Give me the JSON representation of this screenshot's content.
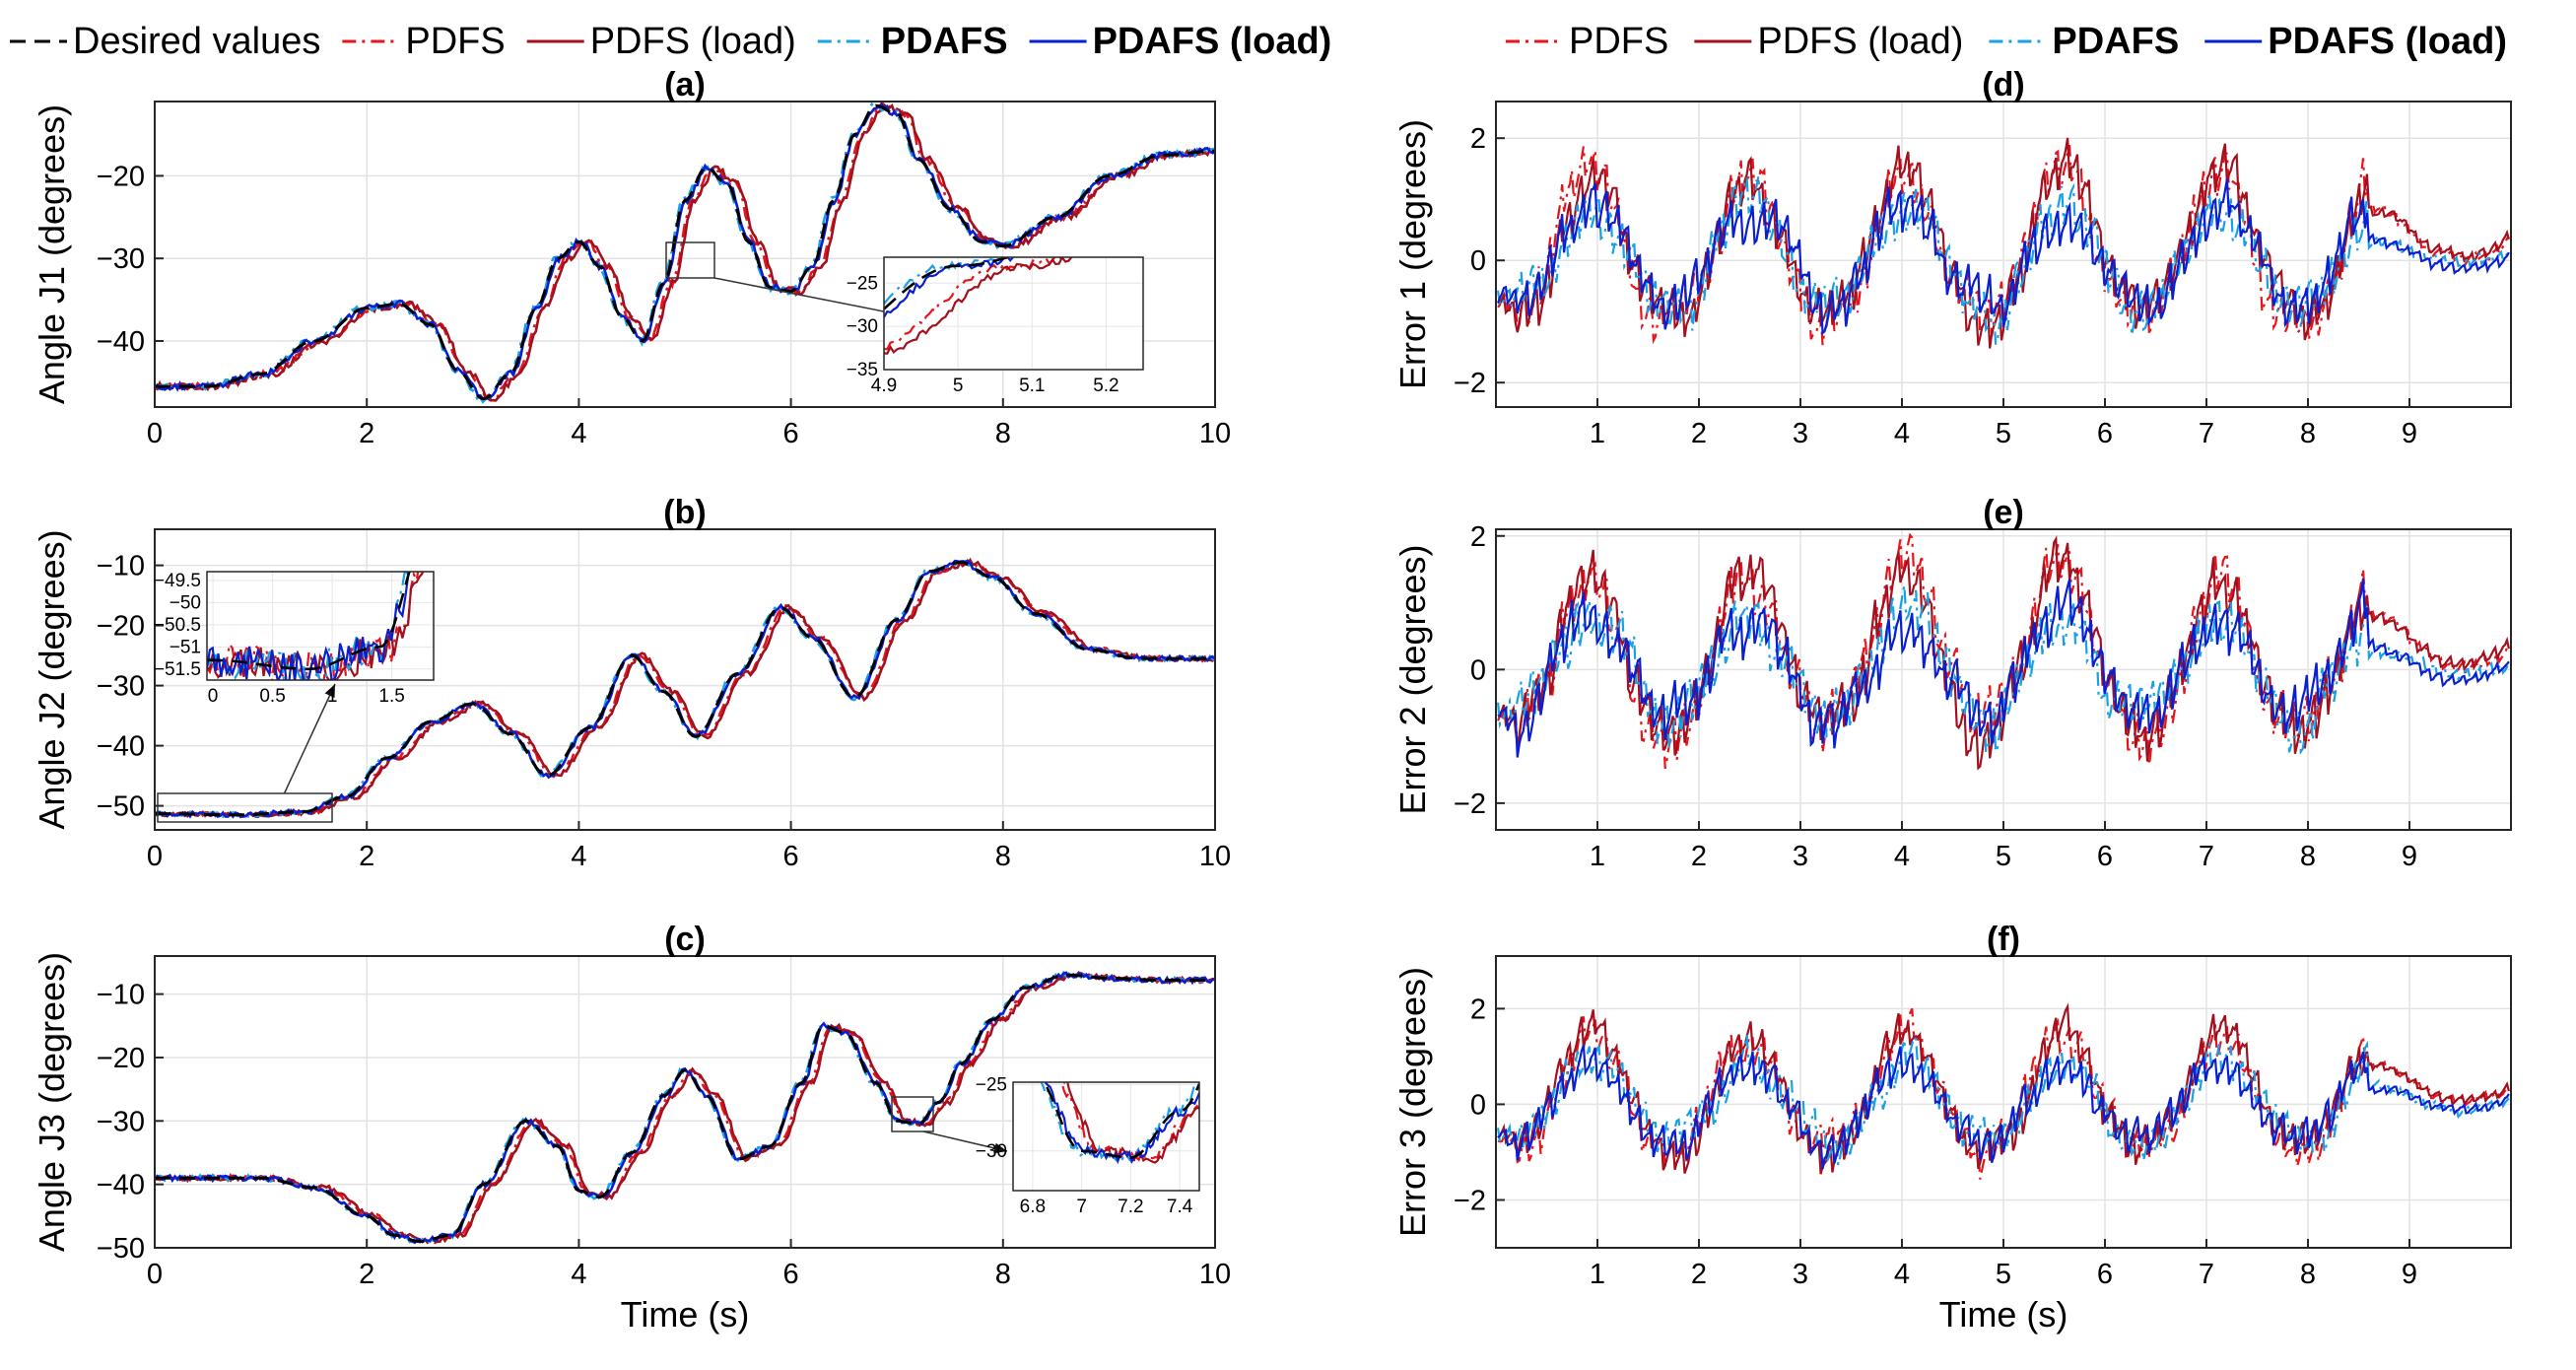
{
  "colors": {
    "desired": "#000000",
    "pdfs": "#e8141c",
    "pdfs_load": "#a3101e",
    "pdafs": "#1aa0e6",
    "pdafs_load": "#0a1fd0"
  },
  "legend_left": [
    {
      "label": "Desired values",
      "style": "dashed",
      "color": "#000000",
      "bold": false
    },
    {
      "label": "PDFS",
      "style": "dashdot",
      "color": "#e8141c",
      "bold": false
    },
    {
      "label": "PDFS (load)",
      "style": "solid",
      "color": "#a3101e",
      "bold": false
    },
    {
      "label": "PDAFS",
      "style": "dashdot",
      "color": "#1aa0e6",
      "bold": true
    },
    {
      "label": "PDAFS (load)",
      "style": "solid",
      "color": "#0a1fd0",
      "bold": true
    }
  ],
  "legend_right": [
    {
      "label": "PDFS",
      "style": "dashdot",
      "color": "#e8141c",
      "bold": false
    },
    {
      "label": "PDFS (load)",
      "style": "solid",
      "color": "#a3101e",
      "bold": false
    },
    {
      "label": "PDAFS",
      "style": "dashdot",
      "color": "#1aa0e6",
      "bold": true
    },
    {
      "label": "PDAFS (load)",
      "style": "solid",
      "color": "#0a1fd0",
      "bold": true
    }
  ],
  "chart_data": [
    {
      "id": "a",
      "type": "line",
      "title": "(a)",
      "xlabel": "",
      "ylabel": "Angle J1 (degrees)",
      "xlim": [
        0,
        10
      ],
      "ylim": [
        -48,
        -11
      ],
      "xticks": [
        0,
        2,
        4,
        6,
        8,
        10
      ],
      "yticks": [
        -40,
        -30,
        -20
      ],
      "grid": true,
      "signal": "angle",
      "desired_x": [
        0,
        0.5,
        1,
        1.5,
        2,
        2.3,
        2.6,
        2.85,
        3.1,
        3.35,
        3.6,
        3.8,
        4.0,
        4.2,
        4.4,
        4.6,
        4.8,
        5.0,
        5.2,
        5.4,
        5.6,
        5.8,
        6.0,
        6.2,
        6.4,
        6.6,
        6.8,
        7.0,
        7.2,
        7.5,
        7.8,
        8.0,
        8.5,
        9.0,
        9.5,
        10
      ],
      "desired_y": [
        -45.5,
        -45.5,
        -44,
        -40,
        -36,
        -35.5,
        -38,
        -43.5,
        -47,
        -44,
        -36,
        -30,
        -28,
        -31,
        -37,
        -40,
        -33,
        -23,
        -19,
        -21,
        -28,
        -33.5,
        -34,
        -31,
        -23,
        -15,
        -11.5,
        -12.5,
        -18,
        -24,
        -28,
        -28.5,
        -25,
        -20,
        -17.5,
        -17
      ],
      "inset": {
        "xlim": [
          4.9,
          5.25
        ],
        "ylim": [
          -35,
          -22
        ],
        "xticks": [
          4.9,
          5,
          5.1,
          5.2
        ],
        "yticks": [
          -35,
          -30,
          -25
        ]
      }
    },
    {
      "id": "b",
      "type": "line",
      "title": "(b)",
      "xlabel": "",
      "ylabel": "Angle J2 (degrees)",
      "xlim": [
        0,
        10
      ],
      "ylim": [
        -54,
        -4
      ],
      "xticks": [
        0,
        2,
        4,
        6,
        8,
        10
      ],
      "yticks": [
        -50,
        -40,
        -30,
        -20,
        -10
      ],
      "grid": true,
      "signal": "angle",
      "desired_x": [
        0,
        0.8,
        1.4,
        1.8,
        2.2,
        2.6,
        3.0,
        3.35,
        3.7,
        4.1,
        4.5,
        4.8,
        5.1,
        5.5,
        5.9,
        6.2,
        6.6,
        7.0,
        7.3,
        7.6,
        7.9,
        8.3,
        8.8,
        9.3,
        10
      ],
      "desired_y": [
        -51.3,
        -51.5,
        -51,
        -48.5,
        -42,
        -36,
        -33,
        -38,
        -45,
        -37,
        -25,
        -31,
        -38.5,
        -28,
        -17,
        -22,
        -32,
        -19,
        -11,
        -9.5,
        -12,
        -18,
        -24,
        -25.5,
        -25.5
      ],
      "inset": {
        "xlim": [
          -0.05,
          1.85
        ],
        "ylim": [
          -51.75,
          -49.3
        ],
        "xticks": [
          0,
          0.5,
          1,
          1.5
        ],
        "yticks": [
          -49.5,
          -50,
          -50.5,
          -51,
          -51.5
        ]
      }
    },
    {
      "id": "c",
      "type": "line",
      "title": "(c)",
      "xlabel": "Time (s)",
      "ylabel": "Angle J3 (degrees)",
      "xlim": [
        0,
        10
      ],
      "ylim": [
        -50,
        -4
      ],
      "xticks": [
        0,
        2,
        4,
        6,
        8,
        10
      ],
      "yticks": [
        -50,
        -40,
        -30,
        -20,
        -10
      ],
      "grid": true,
      "signal": "angle",
      "desired_x": [
        0,
        0.5,
        1.0,
        1.5,
        2.0,
        2.25,
        2.5,
        2.8,
        3.1,
        3.5,
        3.8,
        4.0,
        4.2,
        4.5,
        4.8,
        5.0,
        5.2,
        5.5,
        5.8,
        6.1,
        6.3,
        6.5,
        6.8,
        7.0,
        7.2,
        7.4,
        7.6,
        7.9,
        8.2,
        8.6,
        9.0,
        9.5,
        10
      ],
      "desired_y": [
        -39,
        -39,
        -39,
        -40.5,
        -45,
        -48,
        -49,
        -48,
        -40,
        -30,
        -34,
        -41,
        -42,
        -35,
        -26,
        -22,
        -26,
        -36,
        -34,
        -24,
        -15,
        -16,
        -24,
        -30,
        -30.5,
        -27,
        -21,
        -14,
        -9,
        -7,
        -7.5,
        -7.8,
        -7.8
      ],
      "inset": {
        "xlim": [
          6.72,
          7.48
        ],
        "ylim": [
          -33,
          -24.8
        ],
        "xticks": [
          6.8,
          7,
          7.2,
          7.4
        ],
        "yticks": [
          -30,
          -25
        ]
      }
    },
    {
      "id": "d",
      "type": "line",
      "title": "(d)",
      "xlabel": "",
      "ylabel": "Error 1 (degrees)",
      "xlim": [
        0,
        10
      ],
      "ylim": [
        -2.4,
        2.6
      ],
      "xticks": [
        1,
        2,
        3,
        4,
        5,
        6,
        7,
        8,
        9
      ],
      "yticks": [
        -2,
        0,
        2
      ],
      "grid": true,
      "signal": "error"
    },
    {
      "id": "e",
      "type": "line",
      "title": "(e)",
      "xlabel": "",
      "ylabel": "Error 2 (degrees)",
      "xlim": [
        0,
        10
      ],
      "ylim": [
        -2.4,
        2.1
      ],
      "xticks": [
        1,
        2,
        3,
        4,
        5,
        6,
        7,
        8,
        9
      ],
      "yticks": [
        -2,
        0,
        2
      ],
      "grid": true,
      "signal": "error"
    },
    {
      "id": "f",
      "type": "line",
      "title": "(f)",
      "xlabel": "Time (s)",
      "ylabel": "Error 3 (degrees)",
      "xlim": [
        0,
        10
      ],
      "ylim": [
        -3,
        3.1
      ],
      "xticks": [
        1,
        2,
        3,
        4,
        5,
        6,
        7,
        8,
        9
      ],
      "yticks": [
        -2,
        0,
        2
      ],
      "grid": true,
      "signal": "error"
    }
  ]
}
